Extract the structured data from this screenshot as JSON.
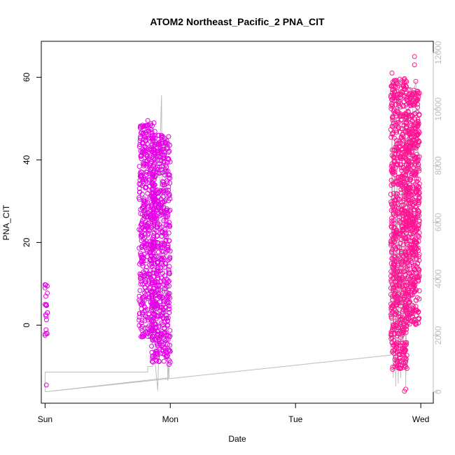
{
  "chart_data": {
    "type": "scatter",
    "title": "ATOM2 Northeast_Pacific_2 PNA_CIT",
    "xlabel": "Date",
    "ylabel": "PNA_CIT",
    "x_ticks": [
      "Sun",
      "Mon",
      "Tue",
      "Wed"
    ],
    "x_tick_values": [
      0,
      1,
      2,
      3
    ],
    "xlim": [
      -0.03,
      3.1
    ],
    "ylim": [
      -18.9,
      68.7
    ],
    "y_ticks": [
      0,
      20,
      40,
      60
    ],
    "y2lim": [
      -400,
      12400
    ],
    "y2_ticks": [
      0,
      2000,
      4000,
      6000,
      8000,
      10000,
      12000
    ],
    "grid": false,
    "colors": {
      "points_early": "#e600e6",
      "points_late": "#ff1493",
      "altitude_line": "#bdbdbd",
      "axes": "#000000",
      "right_axis": "#bdbdbd"
    },
    "series": [
      {
        "role": "points",
        "x_type": "day",
        "y_axis": "left",
        "clusters": [
          {
            "x_start": 0.0,
            "x_end": 0.02,
            "y_low": -4,
            "y_high": 10,
            "n": 16,
            "color": "#e600e6",
            "extra": [
              [
                0.01,
                -14.5
              ],
              [
                0.0,
                -2.5
              ],
              [
                0.0,
                9.8
              ],
              [
                0.0,
                9.0
              ],
              [
                0.0,
                5.0
              ]
            ]
          },
          {
            "x_start": 0.75,
            "x_end": 0.88,
            "y_low": -3,
            "y_high": 49,
            "n": 460,
            "color": "#e600e6",
            "extra": [
              [
                0.82,
                49.5
              ],
              [
                0.83,
                47.0
              ],
              [
                0.76,
                36.0
              ],
              [
                0.79,
                -2.0
              ]
            ]
          },
          {
            "x_start": 0.85,
            "x_end": 1.0,
            "y_low": -9,
            "y_high": 46,
            "n": 560,
            "color": "#e600e6",
            "extra": [
              [
                0.93,
                45.5
              ],
              [
                0.99,
                -8.5
              ],
              [
                0.99,
                -9.5
              ],
              [
                0.88,
                -7.0
              ],
              [
                0.9,
                -5.0
              ]
            ]
          },
          {
            "x_start": 2.76,
            "x_end": 2.89,
            "y_low": -11,
            "y_high": 60,
            "n": 700,
            "color": "#ff1493",
            "extra": [
              [
                2.77,
                61.0
              ],
              [
                2.77,
                58.0
              ],
              [
                2.88,
                -15.5
              ],
              [
                2.87,
                -16.0
              ],
              [
                2.89,
                -10.5
              ]
            ]
          },
          {
            "x_start": 2.88,
            "x_end": 2.99,
            "y_low": 0,
            "y_high": 57,
            "n": 620,
            "color": "#ff1493",
            "extra": [
              [
                2.95,
                65.0
              ],
              [
                2.95,
                63.0
              ],
              [
                2.96,
                59.0
              ],
              [
                2.98,
                0.5
              ]
            ]
          }
        ]
      },
      {
        "role": "line",
        "y_axis": "right",
        "points": [
          [
            0.0,
            0
          ],
          [
            0.0,
            700
          ],
          [
            0.82,
            700
          ],
          [
            0.82,
            900
          ],
          [
            0.86,
            900
          ],
          [
            0.86,
            7400
          ],
          [
            0.87,
            9200
          ],
          [
            0.88,
            8900
          ],
          [
            0.88,
            1000
          ],
          [
            0.9,
            50
          ],
          [
            0.91,
            2000
          ],
          [
            0.92,
            9000
          ],
          [
            0.93,
            10500
          ],
          [
            0.94,
            3000
          ],
          [
            0.95,
            2500
          ],
          [
            0.96,
            9000
          ],
          [
            0.97,
            3500
          ],
          [
            0.98,
            400
          ],
          [
            0.99,
            1200
          ],
          [
            0.99,
            500
          ],
          [
            0.0,
            0
          ],
          [
            0.0,
            0
          ],
          [
            2.76,
            1300
          ],
          [
            2.77,
            10000
          ],
          [
            2.78,
            500
          ],
          [
            2.79,
            9200
          ],
          [
            2.8,
            200
          ],
          [
            2.81,
            8000
          ],
          [
            2.82,
            300
          ],
          [
            2.83,
            7000
          ],
          [
            2.84,
            500
          ],
          [
            2.85,
            8500
          ],
          [
            2.86,
            1000
          ],
          [
            2.87,
            9000
          ],
          [
            2.88,
            200
          ],
          [
            2.9,
            9400
          ],
          [
            2.92,
            8000
          ],
          [
            2.94,
            10500
          ],
          [
            2.96,
            11000
          ],
          [
            2.97,
            10000
          ],
          [
            2.98,
            8000
          ]
        ]
      }
    ]
  }
}
